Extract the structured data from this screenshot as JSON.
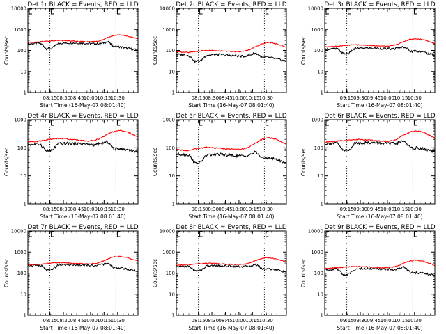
{
  "chart_data": [
    {
      "type": "line",
      "title": "Det 1r BLACK = Events, RED = LLD",
      "xlabel": "Start Time (16-May-07 08:01:40)",
      "ylabel": "Counts/sec",
      "yscale": "log",
      "ylim": [
        1,
        10000
      ],
      "y_tick_labels": [
        "1",
        "10",
        "100",
        "1000",
        "10000"
      ],
      "x_tick_labels": [
        "08:15",
        "08:30",
        "08:45",
        "10:00",
        "10:15",
        "10:30"
      ],
      "markers": [
        "08:15",
        "10:15"
      ],
      "series": [
        {
          "name": "Events",
          "color": "#000000",
          "style": "bumpy",
          "values": [
            200,
            210,
            220,
            120,
            125,
            215,
            225,
            230,
            228,
            220,
            210,
            205,
            215,
            260,
            160,
            150,
            130,
            115,
            100
          ]
        },
        {
          "name": "LLD",
          "color": "#ff0000",
          "style": "smooth",
          "values": [
            240,
            245,
            260,
            270,
            285,
            300,
            295,
            280,
            270,
            262,
            258,
            265,
            300,
            400,
            500,
            560,
            500,
            420,
            360
          ]
        }
      ]
    },
    {
      "type": "line",
      "title": "Det 2r BLACK = Events, RED = LLD",
      "xlabel": "Start Time (16-May-07 08:01:40)",
      "ylabel": "Counts/sec",
      "yscale": "log",
      "ylim": [
        1,
        10000
      ],
      "y_tick_labels": [
        "1",
        "10",
        "100",
        "1000",
        "10000"
      ],
      "x_tick_labels": [
        "08:15",
        "08:30",
        "08:45",
        "10:00",
        "10:15",
        "10:30"
      ],
      "markers": [
        "08:15",
        "10:15"
      ],
      "series": [
        {
          "name": "Events",
          "color": "#000000",
          "style": "bumpy",
          "values": [
            65,
            62,
            58,
            30,
            32,
            60,
            62,
            64,
            60,
            58,
            55,
            52,
            60,
            75,
            45,
            48,
            42,
            36,
            30
          ]
        },
        {
          "name": "LLD",
          "color": "#ff0000",
          "style": "smooth",
          "values": [
            85,
            82,
            80,
            88,
            95,
            100,
            98,
            95,
            92,
            90,
            88,
            92,
            110,
            150,
            200,
            240,
            220,
            180,
            140
          ]
        }
      ]
    },
    {
      "type": "line",
      "title": "Det 3r BLACK = Events, RED = LLD",
      "xlabel": "Start Time (16-May-07 08:01:40)",
      "ylabel": "Counts/sec",
      "yscale": "log",
      "ylim": [
        1,
        10000
      ],
      "y_tick_labels": [
        "1",
        "10",
        "100",
        "1000",
        "10000"
      ],
      "x_tick_labels": [
        "09:15",
        "09:30",
        "09:45",
        "10:00",
        "10:15",
        "10:30"
      ],
      "markers": [
        "09:15",
        "10:15"
      ],
      "series": [
        {
          "name": "Events",
          "color": "#000000",
          "style": "bumpy",
          "values": [
            115,
            118,
            120,
            70,
            72,
            125,
            128,
            130,
            128,
            126,
            122,
            118,
            128,
            150,
            90,
            95,
            85,
            70,
            60
          ]
        },
        {
          "name": "LLD",
          "color": "#ff0000",
          "style": "smooth",
          "values": [
            150,
            155,
            160,
            170,
            178,
            185,
            182,
            176,
            170,
            165,
            160,
            170,
            200,
            270,
            340,
            360,
            330,
            270,
            210
          ]
        }
      ]
    },
    {
      "type": "line",
      "title": "Det 4r BLACK = Events, RED = LLD",
      "xlabel": "Start Time (16-May-07 08:01:40)",
      "ylabel": "Counts/sec",
      "yscale": "log",
      "ylim": [
        1,
        1000
      ],
      "y_tick_labels": [
        "1",
        "10",
        "100",
        "1000"
      ],
      "x_tick_labels": [
        "08:15",
        "08:30",
        "08:45",
        "10:00",
        "10:15",
        "10:30"
      ],
      "markers": [
        "08:15",
        "10:15"
      ],
      "series": [
        {
          "name": "Events",
          "color": "#000000",
          "style": "bumpy",
          "values": [
            130,
            132,
            135,
            75,
            78,
            138,
            140,
            142,
            140,
            138,
            132,
            128,
            138,
            165,
            90,
            95,
            88,
            80,
            70
          ]
        },
        {
          "name": "LLD",
          "color": "#ff0000",
          "style": "smooth",
          "values": [
            160,
            165,
            175,
            190,
            205,
            215,
            210,
            200,
            190,
            180,
            175,
            185,
            220,
            300,
            380,
            410,
            380,
            310,
            240
          ]
        }
      ]
    },
    {
      "type": "line",
      "title": "Det 5r BLACK = Events, RED = LLD",
      "xlabel": "Start Time (16-May-07 08:01:40)",
      "ylabel": "Counts/sec",
      "yscale": "log",
      "ylim": [
        1,
        1000
      ],
      "y_tick_labels": [
        "1",
        "10",
        "100",
        "1000"
      ],
      "x_tick_labels": [
        "08:15",
        "08:30",
        "08:45",
        "10:00",
        "10:15",
        "10:30"
      ],
      "markers": [
        "08:15",
        "10:15"
      ],
      "series": [
        {
          "name": "Events",
          "color": "#000000",
          "style": "bumpy",
          "values": [
            60,
            58,
            56,
            28,
            30,
            55,
            57,
            58,
            56,
            54,
            52,
            50,
            56,
            70,
            42,
            45,
            40,
            34,
            28
          ]
        },
        {
          "name": "LLD",
          "color": "#ff0000",
          "style": "smooth",
          "values": [
            85,
            82,
            80,
            90,
            98,
            105,
            100,
            96,
            92,
            90,
            88,
            92,
            110,
            150,
            200,
            230,
            210,
            170,
            130
          ]
        }
      ]
    },
    {
      "type": "line",
      "title": "Det 6r BLACK = Events, RED = LLD",
      "xlabel": "Start Time (16-May-07 08:01:40)",
      "ylabel": "Counts/sec",
      "yscale": "log",
      "ylim": [
        1,
        1000
      ],
      "y_tick_labels": [
        "1",
        "10",
        "100",
        "1000"
      ],
      "x_tick_labels": [
        "09:15",
        "09:30",
        "09:45",
        "10:00",
        "10:15",
        "10:30"
      ],
      "markers": [
        "09:15",
        "10:15"
      ],
      "series": [
        {
          "name": "Events",
          "color": "#000000",
          "style": "bumpy",
          "values": [
            140,
            142,
            145,
            78,
            80,
            148,
            150,
            152,
            150,
            148,
            142,
            138,
            150,
            175,
            95,
            100,
            92,
            82,
            72
          ]
        },
        {
          "name": "LLD",
          "color": "#ff0000",
          "style": "smooth",
          "values": [
            160,
            165,
            170,
            180,
            190,
            200,
            196,
            188,
            180,
            174,
            170,
            178,
            210,
            290,
            370,
            400,
            360,
            290,
            220
          ]
        }
      ]
    },
    {
      "type": "line",
      "title": "Det 7r BLACK = Events, RED = LLD",
      "xlabel": "Start Time (16-May-07 08:01:40)",
      "ylabel": "Counts/sec",
      "yscale": "log",
      "ylim": [
        1,
        10000
      ],
      "y_tick_labels": [
        "1",
        "10",
        "100",
        "1000",
        "10000"
      ],
      "x_tick_labels": [
        "08:15",
        "08:30",
        "08:45",
        "10:00",
        "10:15",
        "10:30"
      ],
      "markers": [
        "08:15",
        "10:15"
      ],
      "series": [
        {
          "name": "Events",
          "color": "#000000",
          "style": "bumpy",
          "values": [
            230,
            235,
            240,
            140,
            145,
            245,
            250,
            255,
            252,
            248,
            238,
            232,
            248,
            290,
            180,
            175,
            160,
            140,
            120
          ]
        },
        {
          "name": "LLD",
          "color": "#ff0000",
          "style": "smooth",
          "values": [
            250,
            255,
            265,
            285,
            305,
            320,
            315,
            300,
            288,
            280,
            275,
            290,
            340,
            460,
            580,
            620,
            560,
            460,
            380
          ]
        }
      ]
    },
    {
      "type": "line",
      "title": "Det 8r BLACK = Events, RED = LLD",
      "xlabel": "Start Time (16-May-07 08:01:40)",
      "ylabel": "Counts/sec",
      "yscale": "log",
      "ylim": [
        1,
        10000
      ],
      "y_tick_labels": [
        "1",
        "10",
        "100",
        "1000",
        "10000"
      ],
      "x_tick_labels": [
        "08:15",
        "08:30",
        "08:45",
        "10:00",
        "10:15",
        "10:30"
      ],
      "markers": [
        "08:15",
        "10:15"
      ],
      "series": [
        {
          "name": "Events",
          "color": "#000000",
          "style": "bumpy",
          "values": [
            210,
            212,
            215,
            130,
            132,
            218,
            222,
            225,
            222,
            218,
            210,
            205,
            218,
            255,
            160,
            162,
            150,
            130,
            110
          ]
        },
        {
          "name": "LLD",
          "color": "#ff0000",
          "style": "smooth",
          "values": [
            240,
            245,
            255,
            268,
            282,
            295,
            290,
            278,
            268,
            260,
            255,
            265,
            300,
            400,
            500,
            540,
            490,
            410,
            340
          ]
        }
      ]
    },
    {
      "type": "line",
      "title": "Det 9r BLACK = Events, RED = LLD",
      "xlabel": "Start Time (16-May-07 08:01:40)",
      "ylabel": "Counts/sec",
      "yscale": "log",
      "ylim": [
        1,
        10000
      ],
      "y_tick_labels": [
        "1",
        "10",
        "100",
        "1000",
        "10000"
      ],
      "x_tick_labels": [
        "09:15",
        "09:30",
        "09:45",
        "10:00",
        "10:15",
        "10:30"
      ],
      "markers": [
        "09:15",
        "10:15"
      ],
      "series": [
        {
          "name": "Events",
          "color": "#000000",
          "style": "bumpy",
          "values": [
            150,
            152,
            155,
            85,
            88,
            158,
            162,
            165,
            162,
            158,
            152,
            148,
            160,
            190,
            100,
            105,
            98,
            88,
            78
          ]
        },
        {
          "name": "LLD",
          "color": "#ff0000",
          "style": "smooth",
          "values": [
            170,
            175,
            180,
            190,
            200,
            210,
            205,
            198,
            190,
            184,
            180,
            190,
            225,
            300,
            380,
            410,
            370,
            300,
            230
          ]
        }
      ]
    }
  ]
}
